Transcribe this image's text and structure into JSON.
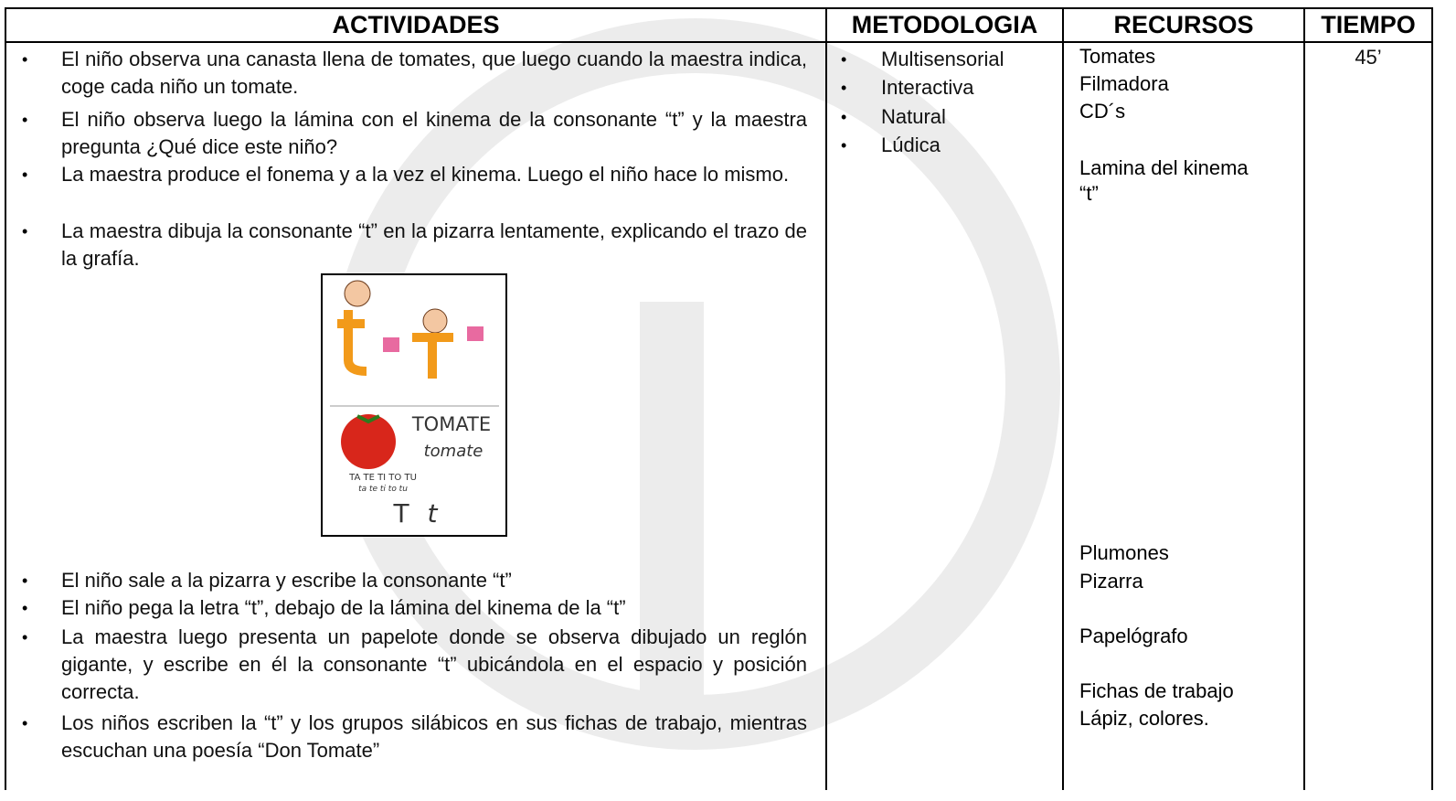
{
  "table": {
    "headers": [
      "ACTIVIDADES",
      "METODOLOGIA",
      "RECURSOS",
      "TIEMPO"
    ],
    "activities_before": [
      "El niño observa una canasta llena de tomates, que luego cuando la maestra indica, coge cada niño un tomate.",
      "El niño observa luego la lámina con el kinema de la consonante “t” y la maestra pregunta ¿Qué dice este niño?",
      "La maestra produce el fonema y a la vez el kinema.  Luego el niño hace lo mismo.",
      "La maestra dibuja la consonante “t” en la pizarra lentamente, explicando el trazo de la grafía."
    ],
    "image": {
      "texts": [
        "TOMATE",
        "tomate",
        "TA TE TI TO TU",
        "ta te ti to tu",
        "T",
        "t"
      ]
    },
    "activities_after": [
      "El niño sale a la pizarra y escribe la consonante “t”",
      "El niño pega la letra “t”, debajo de la lámina del kinema de la “t”",
      "La maestra luego presenta un papelote donde se observa dibujado un reglón gigante, y escribe en él la consonante “t” ubicándola en el espacio y posición correcta.",
      "Los niños escriben la “t” y los grupos silábicos en sus fichas de trabajo, mientras escuchan una poesía “Don Tomate”"
    ],
    "methodology": [
      "Multisensorial",
      "Interactiva",
      "Natural",
      "Lúdica"
    ],
    "resources": [
      "Tomates",
      "Filmadora",
      "CD´s",
      "Lamina del kinema",
      "“t”",
      "Plumones",
      "Pizarra",
      "Papelógrafo",
      "Fichas de trabajo",
      "Lápiz, colores."
    ],
    "time": "45’"
  }
}
